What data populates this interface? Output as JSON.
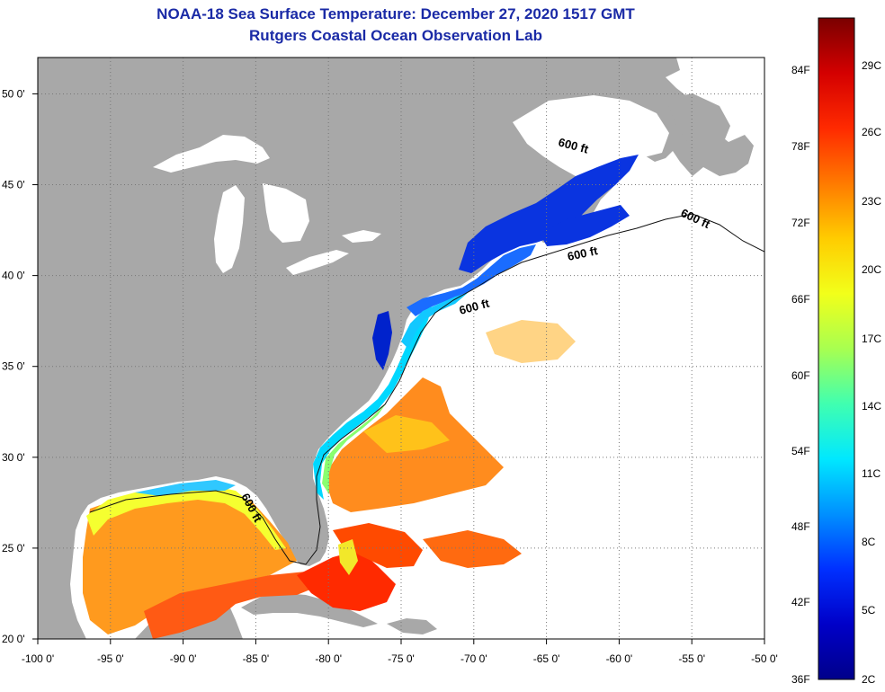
{
  "title_line1": "NOAA-18 Sea Surface Temperature:  December 27, 2020 1517 GMT",
  "title_line2": "Rutgers Coastal Ocean Observation Lab",
  "colors": {
    "land": "#a8a8a8",
    "ocean_white": "#ffffff",
    "grid": "#777777",
    "title": "#1a2aa6"
  },
  "map": {
    "lon_range": [
      -100,
      -50
    ],
    "lat_range": [
      20,
      52
    ],
    "lon_ticks": [
      {
        "value": -100,
        "label": "-100 0'"
      },
      {
        "value": -95,
        "label": "-95 0'"
      },
      {
        "value": -90,
        "label": "-90 0'"
      },
      {
        "value": -85,
        "label": "-85 0'"
      },
      {
        "value": -80,
        "label": "-80 0'"
      },
      {
        "value": -75,
        "label": "-75 0'"
      },
      {
        "value": -70,
        "label": "-70 0'"
      },
      {
        "value": -65,
        "label": "-65 0'"
      },
      {
        "value": -60,
        "label": "-60 0'"
      },
      {
        "value": -55,
        "label": "-55 0'"
      },
      {
        "value": -50,
        "label": "-50 0'"
      }
    ],
    "lat_ticks": [
      {
        "value": 20,
        "label": "20 0'"
      },
      {
        "value": 25,
        "label": "25 0'"
      },
      {
        "value": 30,
        "label": "30 0'"
      },
      {
        "value": 35,
        "label": "35 0'"
      },
      {
        "value": 40,
        "label": "40 0'"
      },
      {
        "value": 45,
        "label": "45 0'"
      },
      {
        "value": 50,
        "label": "50 0'"
      }
    ],
    "contour_label": "600 ft"
  },
  "colorbar": {
    "left_labels": [
      "84F",
      "78F",
      "72F",
      "66F",
      "60F",
      "54F",
      "48F",
      "42F",
      "36F"
    ],
    "right_labels": [
      "29C",
      "26C",
      "23C",
      "20C",
      "17C",
      "14C",
      "11C",
      "8C",
      "5C",
      "2C"
    ],
    "stops": [
      "#7a0000",
      "#d40000",
      "#ff2a00",
      "#ff7a00",
      "#ffcc00",
      "#f2ff1a",
      "#a8ff50",
      "#40ffb0",
      "#00e8ff",
      "#0090ff",
      "#0030ff",
      "#0000c8",
      "#00008a"
    ]
  }
}
